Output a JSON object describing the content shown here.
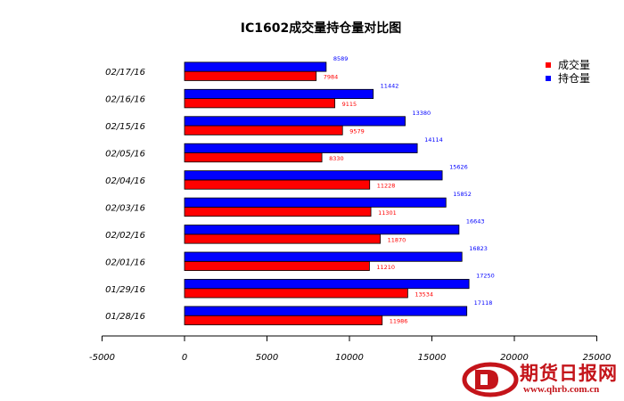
{
  "chart_data": {
    "type": "bar",
    "orientation": "horizontal",
    "title": "IC1602成交量持仓量对比图",
    "categories": [
      "01/28/16",
      "01/29/16",
      "02/01/16",
      "02/02/16",
      "02/03/16",
      "02/04/16",
      "02/05/16",
      "02/15/16",
      "02/16/16",
      "02/17/16"
    ],
    "series": [
      {
        "name": "成交量",
        "color": "#ff0000",
        "values": [
          11986,
          13534,
          11210,
          11870,
          11301,
          11228,
          8330,
          9579,
          9115,
          7984
        ]
      },
      {
        "name": "持仓量",
        "color": "#0000ff",
        "values": [
          17118,
          17250,
          16823,
          16643,
          15852,
          15626,
          14114,
          13380,
          11442,
          8589
        ]
      }
    ],
    "x_ticks": [
      "-5000",
      "0",
      "5000",
      "10000",
      "15000",
      "20000",
      "25000"
    ],
    "xlim": [
      -5000,
      25000
    ],
    "grid": false,
    "legend_position": "top-right"
  },
  "watermark": {
    "brand": "期货日报网",
    "url": "www.qhrb.com.cn",
    "color": "#c4141a"
  }
}
